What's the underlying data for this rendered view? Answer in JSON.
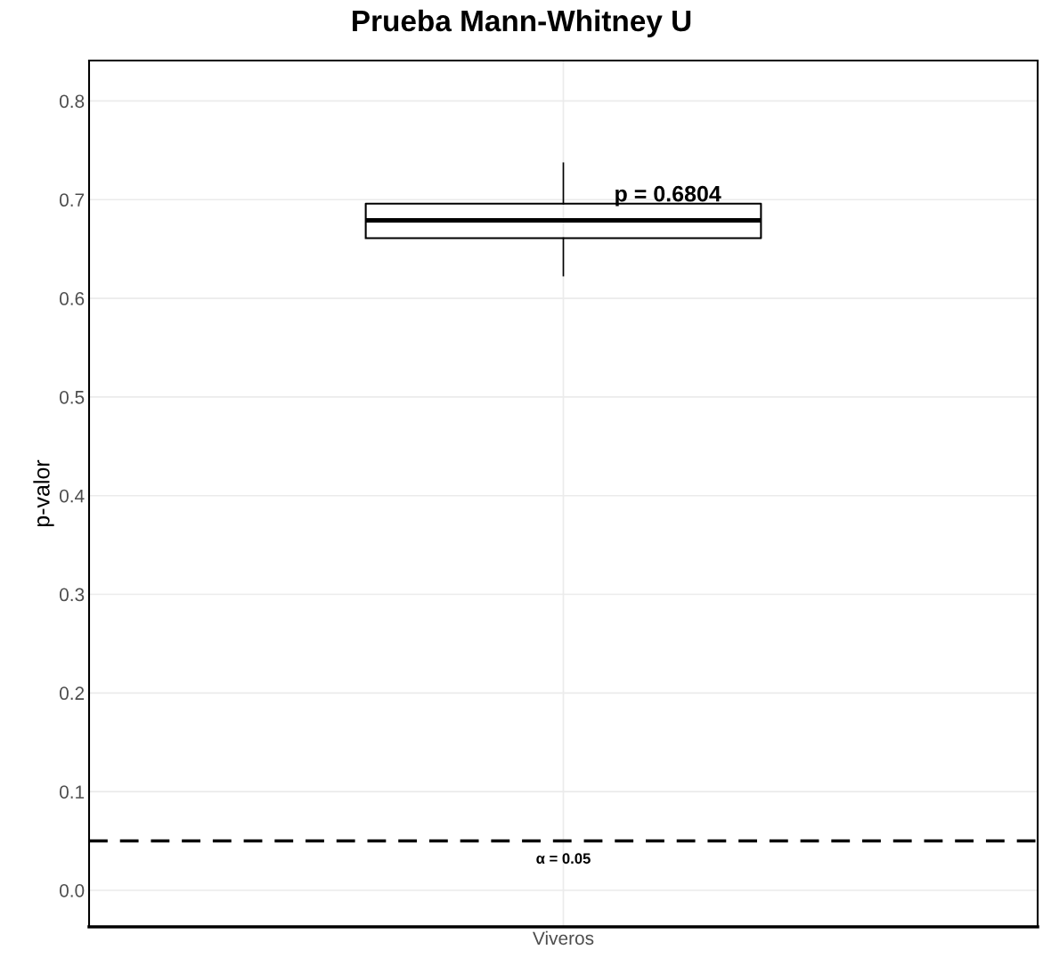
{
  "chart_data": {
    "type": "box",
    "title": "Prueba Mann-Whitney U",
    "ylabel": "p-valor",
    "categories": [
      "Viveros"
    ],
    "boxes": [
      {
        "low": 0.623,
        "q1": 0.661,
        "median": 0.679,
        "q3": 0.696,
        "high": 0.737
      }
    ],
    "ylim": [
      -0.037,
      0.841
    ],
    "yticks": [
      {
        "value": 0,
        "label": "0.0"
      },
      0.1,
      0.2,
      0.3,
      0.4,
      0.5,
      0.6,
      0.7,
      0.8
    ],
    "ref_lines": [
      {
        "axis": "y",
        "value": 0.05,
        "label": "α = 0.05",
        "color": "#000000",
        "line_style": "dashed"
      }
    ],
    "annotations": [
      "p = 0.6804"
    ],
    "grid": true
  }
}
